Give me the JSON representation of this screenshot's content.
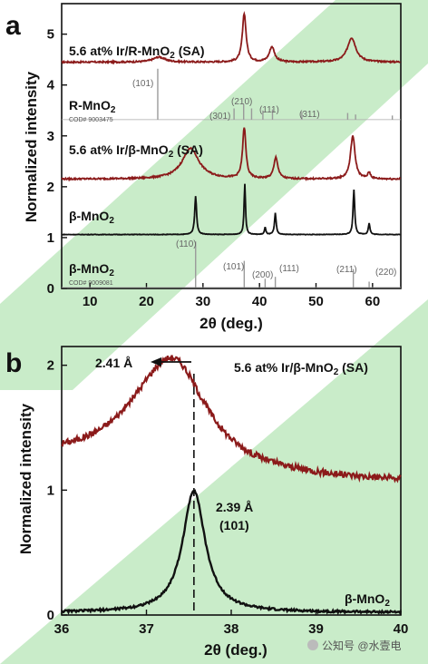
{
  "figure": {
    "colors": {
      "red": "#8b1a1a",
      "black": "#111111",
      "ref": "#9a9a9a",
      "green": "#c9ecc9"
    },
    "watermark_text": "公知号 @水壹电"
  },
  "panel_a": {
    "letter": "a",
    "xlabel": "2θ (deg.)",
    "ylabel": "Normalized intensity",
    "xlim": [
      5,
      65
    ],
    "ylim": [
      0,
      5.6
    ],
    "xticks": [
      "10",
      "20",
      "30",
      "40",
      "50",
      "60"
    ],
    "yticks": [
      "0",
      "1",
      "2",
      "3",
      "4",
      "5"
    ],
    "curves": {
      "ir_r_label_main": "5.6 at% Ir/R-MnO",
      "ir_r_label_sub": "2",
      "ir_r_label_tail": " (SA)",
      "r_ref_label_main": "R-MnO",
      "r_ref_label_sub": "2",
      "r_ref_cod": "COD# 9003475",
      "ir_b_label_main": "5.6 at% Ir/β-MnO",
      "ir_b_label_sub": "2",
      "ir_b_label_tail": " (SA)",
      "b_label_main": "β-MnO",
      "b_label_sub": "2",
      "b_ref_label_main": "β-MnO",
      "b_ref_label_sub": "2",
      "b_ref_cod": "COD# 9009081"
    },
    "hkl_r": {
      "p101": "(101)",
      "p301": "(301)",
      "p210": "(210)",
      "p111": "(111)",
      "p311": "(311)"
    },
    "hkl_b": {
      "p110": "(110)",
      "p101": "(101)",
      "p200": "(200)",
      "p111": "(111)",
      "p211": "(211)",
      "p220": "(220)"
    }
  },
  "panel_b": {
    "letter": "b",
    "xlabel": "2θ (deg.)",
    "ylabel": "Normalized intensity",
    "xlim": [
      36,
      40
    ],
    "ylim": [
      0,
      2.15
    ],
    "xticks": [
      "36",
      "37",
      "38",
      "39",
      "40"
    ],
    "yticks": [
      "0",
      "1",
      "2"
    ],
    "ir_label_main": "5.6 at% Ir/β-MnO",
    "ir_label_sub": "2",
    "ir_label_tail": " (SA)",
    "b_label_main": "β-MnO",
    "b_label_sub": "2",
    "d_ir": "2.41 Å",
    "d_b": "2.39 Å",
    "hkl": "(101)"
  },
  "chart_data": [
    {
      "type": "line",
      "panel": "a",
      "xlabel": "2θ (deg.)",
      "ylabel": "Normalized intensity",
      "xlim": [
        5,
        65
      ],
      "ylim": [
        0,
        5.6
      ],
      "series": [
        {
          "name": "5.6 at% Ir/R-MnO2 (SA)",
          "baseline": 4.45,
          "peaks": [
            [
              22.2,
              0.1,
              2.5
            ],
            [
              37.3,
              0.95,
              0.8
            ],
            [
              42.2,
              0.3,
              1.1
            ],
            [
              56.3,
              0.48,
              1.8
            ]
          ]
        },
        {
          "name": "R-MnO2 COD# 9003475",
          "sticks": [
            [
              22.0,
              1.0
            ],
            [
              35.5,
              0.22
            ],
            [
              37.2,
              0.3
            ],
            [
              38.6,
              0.22
            ],
            [
              40.6,
              0.18
            ],
            [
              42.3,
              0.2
            ],
            [
              47.5,
              0.15
            ],
            [
              55.6,
              0.13
            ],
            [
              57.0,
              0.1
            ],
            [
              63.5,
              0.08
            ]
          ]
        },
        {
          "name": "5.6 at% Ir/β-MnO2 (SA)",
          "baseline": 2.15,
          "peaks": [
            [
              27.8,
              0.6,
              3.6
            ],
            [
              37.3,
              1.0,
              0.7
            ],
            [
              42.9,
              0.42,
              0.85
            ],
            [
              56.5,
              0.85,
              0.95
            ],
            [
              59.4,
              0.12,
              0.6
            ]
          ]
        },
        {
          "name": "β-MnO2",
          "baseline": 1.06,
          "peaks": [
            [
              28.7,
              0.75,
              0.4
            ],
            [
              37.4,
              1.0,
              0.3
            ],
            [
              41.0,
              0.14,
              0.3
            ],
            [
              42.8,
              0.42,
              0.35
            ],
            [
              56.7,
              0.88,
              0.35
            ],
            [
              59.4,
              0.22,
              0.35
            ]
          ]
        },
        {
          "name": "β-MnO2 COD# 9009081",
          "sticks": [
            [
              28.7,
              0.95
            ],
            [
              37.3,
              0.55
            ],
            [
              41.0,
              0.18
            ],
            [
              42.8,
              0.22
            ],
            [
              56.6,
              0.38
            ],
            [
              59.4,
              0.12
            ]
          ]
        }
      ]
    },
    {
      "type": "line",
      "panel": "b",
      "xlabel": "2θ (deg.)",
      "ylabel": "Normalized intensity",
      "xlim": [
        36,
        40
      ],
      "ylim": [
        0,
        2.15
      ],
      "series": [
        {
          "name": "5.6 at% Ir/β-MnO2 (SA)",
          "baseline": 1.12,
          "peak_x": 37.3,
          "peak_y": 2.08,
          "left_start_y": 1.28
        },
        {
          "name": "β-MnO2",
          "baseline": 0.0,
          "peak_x": 37.56,
          "peak_y": 1.0
        }
      ],
      "annotations": [
        {
          "text": "2.41 Å",
          "x": 36.55,
          "y": 2.08
        },
        {
          "text": "2.39 Å (101)",
          "x": 37.82,
          "y": 0.82
        },
        {
          "reference_line_x": 37.56
        }
      ]
    }
  ]
}
